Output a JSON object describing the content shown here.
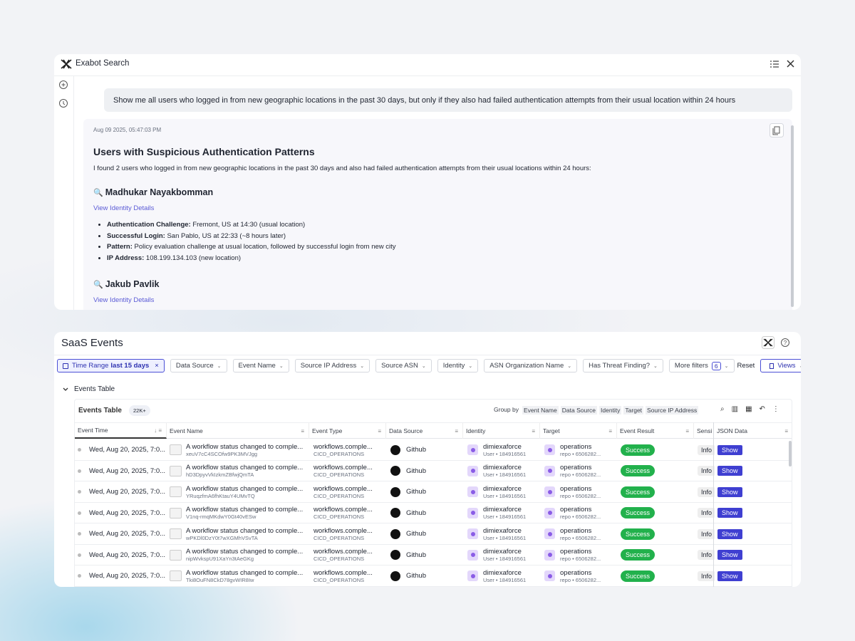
{
  "search": {
    "title": "Exabot Search",
    "query": "Show me all users who logged in from new geographic locations in the past 30 days, but only if they also had failed authentication attempts from their usual location within 24 hours",
    "response": {
      "timestamp": "Aug 09 2025, 05:47:03 PM",
      "heading": "Users with Suspicious Authentication Patterns",
      "intro": "I found 2 users who logged in from new geographic locations in the past 30 days and also had failed authentication attempts from their usual locations within 24 hours:",
      "identities": [
        {
          "name": "Madhukar Nayakbomman",
          "link": "View Identity Details",
          "details": [
            {
              "label": "Authentication Challenge:",
              "text": "Fremont, US at 14:30 (usual location)"
            },
            {
              "label": "Successful Login:",
              "text": "San Pablo, US at 22:33 (~8 hours later)"
            },
            {
              "label": "Pattern:",
              "text": "Policy evaluation challenge at usual location, followed by successful login from new city"
            },
            {
              "label": "IP Address:",
              "text": "108.199.134.103 (new location)"
            }
          ]
        },
        {
          "name": "Jakub Pavlik",
          "link": "View Identity Details",
          "details": []
        }
      ]
    }
  },
  "events": {
    "title": "SaaS Events",
    "time_range": {
      "label": "Time Range",
      "value": "last 15 days"
    },
    "filters": [
      "Data Source",
      "Event Name",
      "Source IP Address",
      "Source ASN",
      "Identity",
      "ASN Organization Name",
      "Has Threat Finding?"
    ],
    "more_filters": {
      "label": "More filters",
      "count": "6"
    },
    "reset": "Reset",
    "views": "Views",
    "section_title": "Events Table",
    "table": {
      "title": "Events Table",
      "count": "22K+",
      "group_by_label": "Group by",
      "group_by": [
        "Event Name",
        "Data Source",
        "Identity",
        "Target",
        "Source IP Address"
      ],
      "columns": [
        "Event Time",
        "Event Name",
        "Event Type",
        "Data Source",
        "Identity",
        "Target",
        "Event Result",
        "Sensi",
        "JSON Data"
      ],
      "rows": [
        {
          "time": "Wed, Aug 20, 2025, 7:0...",
          "name": "A workflow status changed to comple...",
          "id": "xeuV7cC4SCOfw9PK3MVJgg",
          "type": "workflows.comple...",
          "type_sub": "CICD_OPERATIONS",
          "source": "Github",
          "identity": "dimiexaforce",
          "identity_sub": "User • 184916561",
          "target": "operations",
          "target_sub": "repo • 6506282...",
          "result": "Success",
          "sensitivity": "Info",
          "json": "Show"
        },
        {
          "time": "Wed, Aug 20, 2025, 7:0...",
          "name": "A workflow status changed to comple...",
          "id": "hD3DpyvVkIzkmZBfwjQmTA",
          "type": "workflows.comple...",
          "type_sub": "CICD_OPERATIONS",
          "source": "Github",
          "identity": "dimiexaforce",
          "identity_sub": "User • 184916561",
          "target": "operations",
          "target_sub": "repo • 6506282...",
          "result": "Success",
          "sensitivity": "Info",
          "json": "Show"
        },
        {
          "time": "Wed, Aug 20, 2025, 7:0...",
          "name": "A workflow status changed to comple...",
          "id": "YRuqzfmA6fhKtauY4UMvTQ",
          "type": "workflows.comple...",
          "type_sub": "CICD_OPERATIONS",
          "source": "Github",
          "identity": "dimiexaforce",
          "identity_sub": "User • 184916561",
          "target": "operations",
          "target_sub": "repo • 6506282...",
          "result": "Success",
          "sensitivity": "Info",
          "json": "Show"
        },
        {
          "time": "Wed, Aug 20, 2025, 7:0...",
          "name": "A workflow status changed to comple...",
          "id": "V1nq-rmqMKdwY0Gt40vESw",
          "type": "workflows.comple...",
          "type_sub": "CICD_OPERATIONS",
          "source": "Github",
          "identity": "dimiexaforce",
          "identity_sub": "User • 184916561",
          "target": "operations",
          "target_sub": "repo • 6506282...",
          "result": "Success",
          "sensitivity": "Info",
          "json": "Show"
        },
        {
          "time": "Wed, Aug 20, 2025, 7:0...",
          "name": "A workflow status changed to comple...",
          "id": "wPKDl0DzY0t7wXGMhVSvTA",
          "type": "workflows.comple...",
          "type_sub": "CICD_OPERATIONS",
          "source": "Github",
          "identity": "dimiexaforce",
          "identity_sub": "User • 184916561",
          "target": "operations",
          "target_sub": "repo • 6506282...",
          "result": "Success",
          "sensitivity": "Info",
          "json": "Show"
        },
        {
          "time": "Wed, Aug 20, 2025, 7:0...",
          "name": "A workflow status changed to comple...",
          "id": "nipWvkspU91XaYn3tAeGKg",
          "type": "workflows.comple...",
          "type_sub": "CICD_OPERATIONS",
          "source": "Github",
          "identity": "dimiexaforce",
          "identity_sub": "User • 184916561",
          "target": "operations",
          "target_sub": "repo • 6506282...",
          "result": "Success",
          "sensitivity": "Info",
          "json": "Show"
        },
        {
          "time": "Wed, Aug 20, 2025, 7:0...",
          "name": "A workflow status changed to comple...",
          "id": "Tki8OuFN8CkD78gvWIR8Iw",
          "type": "workflows.comple...",
          "type_sub": "CICD_OPERATIONS",
          "source": "Github",
          "identity": "dimiexaforce",
          "identity_sub": "User • 184916561",
          "target": "operations",
          "target_sub": "repo • 6506282...",
          "result": "Success",
          "sensitivity": "Info",
          "json": "Show"
        }
      ]
    }
  }
}
